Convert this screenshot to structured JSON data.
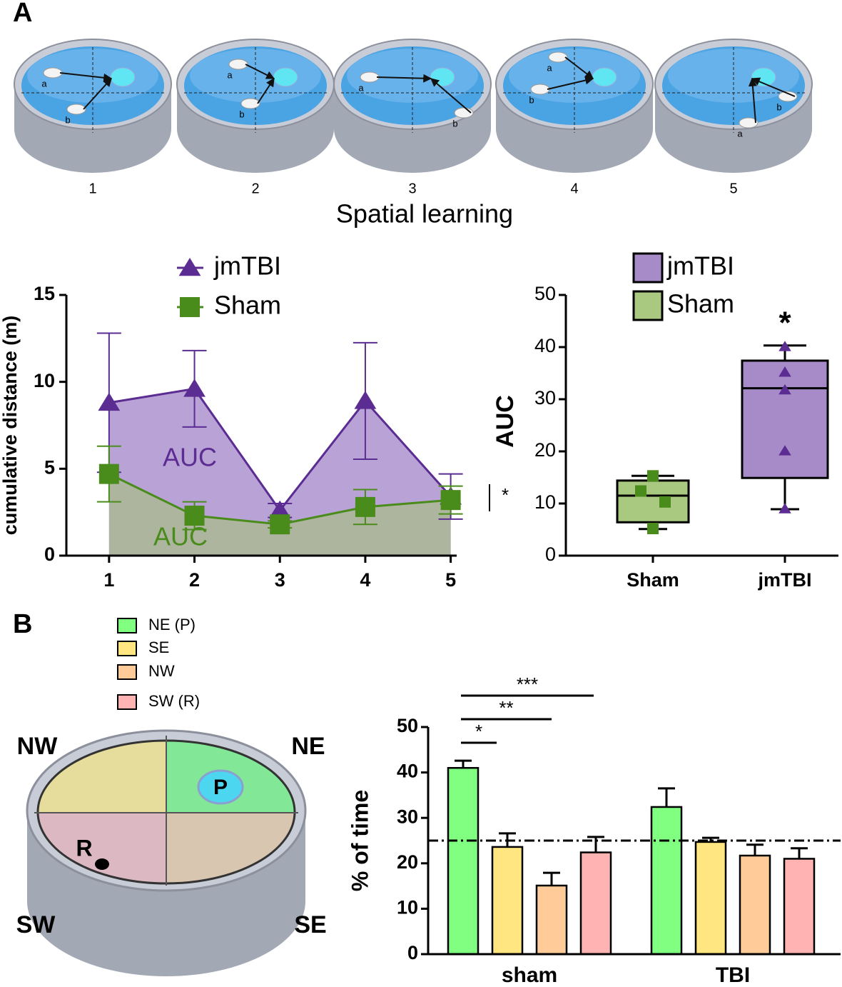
{
  "panel_labels": [
    "A",
    "B"
  ],
  "pools": {
    "labels": [
      "1",
      "2",
      "3",
      "4",
      "5"
    ],
    "rat_labels": [
      [
        "a",
        "b"
      ],
      [
        "a",
        "b"
      ],
      [
        "a",
        "b"
      ],
      [
        "a",
        "b"
      ],
      [
        "a",
        "b"
      ]
    ],
    "caption": "Spatial learning"
  },
  "quadrant_diagram": {
    "corner_labels": [
      "NW",
      "NE",
      "SW",
      "SE"
    ],
    "platform": "P",
    "release": "R"
  },
  "chart_data": [
    {
      "type": "line",
      "y_label": "cumulative distance (m)",
      "x": [
        1,
        2,
        3,
        4,
        5
      ],
      "xlim": [
        0.5,
        5.07
      ],
      "xticks": [
        1,
        2,
        3,
        4,
        5
      ],
      "ylim": [
        0,
        15
      ],
      "yticks": [
        0,
        5,
        10,
        15
      ],
      "series": [
        {
          "name": "jmTBI",
          "color": "#5b2c91",
          "area_color": "#b9a3d6",
          "marker": "triangle",
          "values": [
            8.8,
            9.6,
            2.6,
            8.9,
            3.4
          ],
          "errors": [
            4.0,
            2.2,
            0.4,
            3.35,
            1.3
          ]
        },
        {
          "name": "Sham",
          "color": "#4a8c1c",
          "area_color": "#aeb59e",
          "marker": "square",
          "values": [
            4.7,
            2.3,
            1.8,
            2.8,
            3.2
          ],
          "errors": [
            1.6,
            0.8,
            0.2,
            1.0,
            0.8
          ]
        }
      ],
      "annotations": [
        "AUC",
        "AUC",
        "*"
      ]
    },
    {
      "type": "box",
      "y_label": "AUC",
      "categories": [
        "Sham",
        "jmTBI"
      ],
      "ylim": [
        0,
        50
      ],
      "yticks": [
        0,
        10,
        20,
        30,
        40,
        50
      ],
      "series": [
        {
          "name": "Sham",
          "color": "#4a8c1c",
          "fill": "#a8c97f",
          "marker": "square",
          "min": 5.1,
          "q1": 6.4,
          "median": 11.5,
          "q3": 14.4,
          "max": 15.3,
          "points": [
            15.3,
            12.4,
            10.3,
            5.2
          ]
        },
        {
          "name": "jmTBI",
          "color": "#5b2c91",
          "fill": "#a78bc9",
          "marker": "triangle",
          "min": 8.9,
          "q1": 14.9,
          "median": 32.1,
          "q3": 37.4,
          "max": 40.3,
          "points": [
            40.1,
            35.2,
            31.8,
            20.1,
            9.0
          ]
        }
      ],
      "annotations": [
        "*"
      ]
    },
    {
      "type": "bar",
      "y_label": "% of time",
      "categories": [
        "sham",
        "TBI"
      ],
      "ylim": [
        0,
        50
      ],
      "yticks": [
        0,
        10,
        20,
        30,
        40,
        50
      ],
      "refline": 25,
      "series": [
        {
          "name": "NE (P)",
          "color": "#80ff80",
          "values": [
            41.0,
            32.4
          ],
          "errors": [
            1.6,
            4.1
          ]
        },
        {
          "name": "SE",
          "color": "#ffe680",
          "values": [
            23.6,
            24.7
          ],
          "errors": [
            3.0,
            0.9
          ]
        },
        {
          "name": "NW",
          "color": "#ffcc99",
          "values": [
            15.1,
            21.7
          ],
          "errors": [
            2.8,
            2.4
          ]
        },
        {
          "name": "SW (R)",
          "color": "#ffb3b3",
          "values": [
            22.4,
            21.0
          ],
          "errors": [
            3.4,
            2.3
          ]
        }
      ],
      "significance": [
        "*",
        "**",
        "***"
      ]
    }
  ]
}
